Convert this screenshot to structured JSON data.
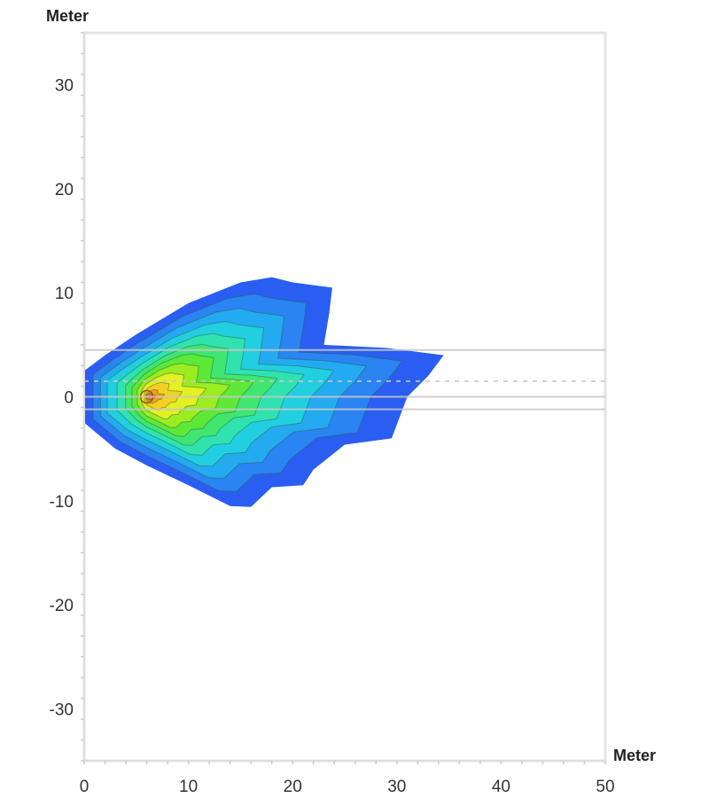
{
  "chart_data": {
    "type": "heatmap",
    "subtype": "filled-contour",
    "xlabel": "Meter",
    "ylabel": "Meter",
    "xlim": [
      0,
      50
    ],
    "ylim": [
      -35,
      35
    ],
    "xticks": [
      0,
      10,
      20,
      30,
      40,
      50
    ],
    "yticks": [
      30,
      20,
      10,
      0,
      -10,
      -20,
      -30
    ],
    "grid": false,
    "peak": {
      "x": 6,
      "y": 0
    },
    "outer_boundary": [
      [
        0,
        2.5
      ],
      [
        2,
        4
      ],
      [
        5,
        6
      ],
      [
        10,
        9
      ],
      [
        15,
        11
      ],
      [
        18,
        11.5
      ],
      [
        20,
        11
      ],
      [
        23.8,
        10.5
      ],
      [
        23.5,
        8
      ],
      [
        23,
        5
      ],
      [
        29,
        4.7
      ],
      [
        34.5,
        4
      ],
      [
        33,
        2
      ],
      [
        31,
        0
      ],
      [
        29.5,
        -4
      ],
      [
        25,
        -4.6
      ],
      [
        22,
        -7
      ],
      [
        21,
        -8.5
      ],
      [
        18,
        -8.7
      ],
      [
        16,
        -10.6
      ],
      [
        14,
        -10.5
      ],
      [
        10,
        -8.5
      ],
      [
        6,
        -6.6
      ],
      [
        3,
        -5
      ],
      [
        0,
        -2.5
      ]
    ],
    "levels": [
      {
        "scale": 1.0,
        "color": "#2a5ef2"
      },
      {
        "scale": 0.86,
        "color": "#2a84f2"
      },
      {
        "scale": 0.74,
        "color": "#24aaf0"
      },
      {
        "scale": 0.63,
        "color": "#22cfe0"
      },
      {
        "scale": 0.53,
        "color": "#30e2b0"
      },
      {
        "scale": 0.44,
        "color": "#40e670"
      },
      {
        "scale": 0.36,
        "color": "#5ee838"
      },
      {
        "scale": 0.28,
        "color": "#9cec22"
      },
      {
        "scale": 0.2,
        "color": "#e4f020"
      },
      {
        "scale": 0.12,
        "color": "#f4d020"
      },
      {
        "scale": 0.06,
        "color": "#f0a020"
      },
      {
        "scale": 0.03,
        "color": "#e07828"
      }
    ],
    "reference_lines": [
      {
        "y": 4.5,
        "style": "solid"
      },
      {
        "y": 1.5,
        "style": "dashed"
      },
      {
        "y": 0,
        "style": "solid"
      },
      {
        "y": -1.2,
        "style": "solid"
      }
    ]
  }
}
